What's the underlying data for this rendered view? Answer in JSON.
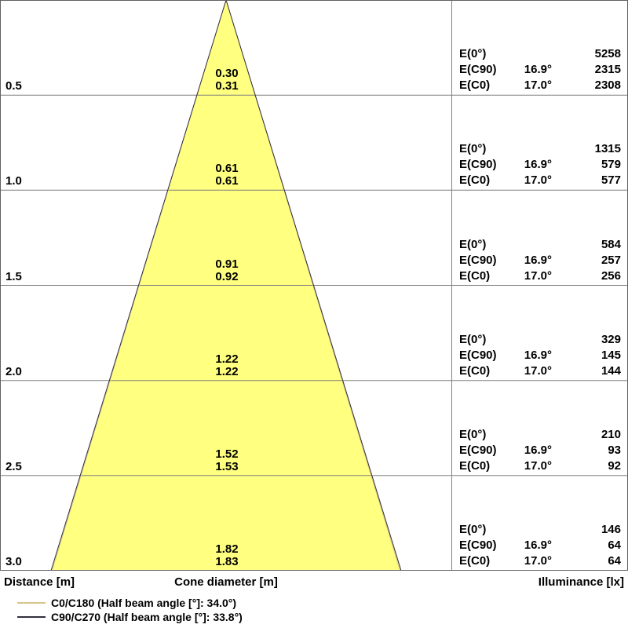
{
  "colors": {
    "cone_fill": "#FFFF80",
    "cone_outline_dark": "#2F2F3F",
    "cone_outline_yellow": "#D8C488",
    "grid_line": "#808080",
    "border": "#606060"
  },
  "axis": {
    "distance_label": "Distance [m]",
    "cone_label": "Cone diameter [m]",
    "illuminance_label": "Illuminance [lx]"
  },
  "legend": [
    {
      "label": "C0/C180 (Half beam angle [°]: 34.0°)",
      "color": "#D8C488"
    },
    {
      "label": "C90/C270 (Half beam angle [°]: 33.8°)",
      "color": "#2F2F3F"
    }
  ],
  "rows": [
    {
      "distance": "0.5",
      "cone": [
        "0.30",
        "0.31"
      ],
      "illum": [
        {
          "label": "E(0°)",
          "angle": "",
          "value": "5258"
        },
        {
          "label": "E(C90)",
          "angle": "16.9°",
          "value": "2315"
        },
        {
          "label": "E(C0)",
          "angle": "17.0°",
          "value": "2308"
        }
      ]
    },
    {
      "distance": "1.0",
      "cone": [
        "0.61",
        "0.61"
      ],
      "illum": [
        {
          "label": "E(0°)",
          "angle": "",
          "value": "1315"
        },
        {
          "label": "E(C90)",
          "angle": "16.9°",
          "value": "579"
        },
        {
          "label": "E(C0)",
          "angle": "17.0°",
          "value": "577"
        }
      ]
    },
    {
      "distance": "1.5",
      "cone": [
        "0.91",
        "0.92"
      ],
      "illum": [
        {
          "label": "E(0°)",
          "angle": "",
          "value": "584"
        },
        {
          "label": "E(C90)",
          "angle": "16.9°",
          "value": "257"
        },
        {
          "label": "E(C0)",
          "angle": "17.0°",
          "value": "256"
        }
      ]
    },
    {
      "distance": "2.0",
      "cone": [
        "1.22",
        "1.22"
      ],
      "illum": [
        {
          "label": "E(0°)",
          "angle": "",
          "value": "329"
        },
        {
          "label": "E(C90)",
          "angle": "16.9°",
          "value": "145"
        },
        {
          "label": "E(C0)",
          "angle": "17.0°",
          "value": "144"
        }
      ]
    },
    {
      "distance": "2.5",
      "cone": [
        "1.52",
        "1.53"
      ],
      "illum": [
        {
          "label": "E(0°)",
          "angle": "",
          "value": "210"
        },
        {
          "label": "E(C90)",
          "angle": "16.9°",
          "value": "93"
        },
        {
          "label": "E(C0)",
          "angle": "17.0°",
          "value": "92"
        }
      ]
    },
    {
      "distance": "3.0",
      "cone": [
        "1.82",
        "1.83"
      ],
      "illum": [
        {
          "label": "E(0°)",
          "angle": "",
          "value": "146"
        },
        {
          "label": "E(C90)",
          "angle": "16.9°",
          "value": "64"
        },
        {
          "label": "E(C0)",
          "angle": "17.0°",
          "value": "64"
        }
      ]
    }
  ],
  "chart_data": {
    "type": "area",
    "subtype": "light-cone-diagram",
    "title": "",
    "xlabel": "Distance [m]",
    "ylabel_center": "Cone diameter [m]",
    "ylabel_right": "Illuminance [lx]",
    "distances_m": [
      0.5,
      1.0,
      1.5,
      2.0,
      2.5,
      3.0
    ],
    "cone_diameter_m": {
      "C0_C180": [
        0.3,
        0.61,
        0.91,
        1.22,
        1.52,
        1.82
      ],
      "C90_C270": [
        0.31,
        0.61,
        0.92,
        1.22,
        1.53,
        1.83
      ]
    },
    "illuminance_lx": {
      "E0": [
        5258,
        1315,
        584,
        329,
        210,
        146
      ],
      "EC90": [
        2315,
        579,
        257,
        145,
        93,
        64
      ],
      "EC0": [
        2308,
        577,
        256,
        144,
        92,
        64
      ]
    },
    "angle_labels": {
      "EC90": "16.9°",
      "EC0": "17.0°"
    },
    "half_beam_angle_deg": {
      "C0_C180": 34.0,
      "C90_C270": 33.8
    },
    "legend_position": "bottom-left",
    "grid": true
  }
}
